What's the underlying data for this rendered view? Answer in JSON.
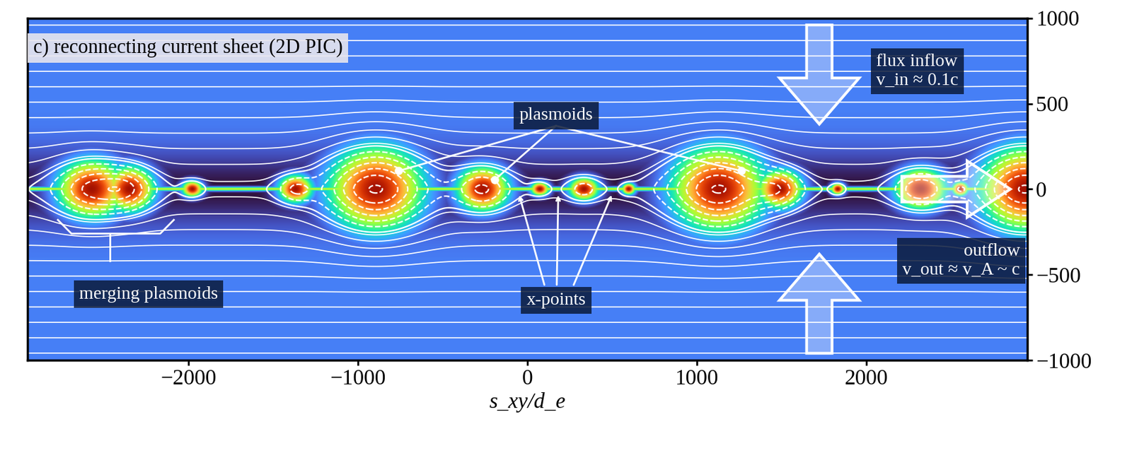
{
  "chart_data": {
    "type": "image",
    "title": "c) reconnecting current sheet (2D PIC)",
    "xlabel": "s_xy/d_e",
    "xlim": [
      -2950,
      2950
    ],
    "ylim": [
      -1000,
      1000
    ],
    "xticks": [
      {
        "value": -2000,
        "label": "−2000"
      },
      {
        "value": -1000,
        "label": "−1000"
      },
      0,
      1000,
      2000
    ],
    "yticks": [
      {
        "value": -1000,
        "label": "−1000"
      },
      {
        "value": -500,
        "label": "−500"
      },
      0,
      500,
      1000
    ],
    "plasmoids": [
      {
        "x": -2574,
        "width": 300,
        "height": 260
      },
      {
        "x": -2349,
        "width": 220,
        "height": 200
      },
      {
        "x": -1979,
        "width": 90,
        "height": 70
      },
      {
        "x": -1370,
        "width": 150,
        "height": 120
      },
      {
        "x": -894,
        "width": 420,
        "height": 380
      },
      {
        "x": -264,
        "width": 230,
        "height": 200
      },
      {
        "x": 72,
        "width": 80,
        "height": 60
      },
      {
        "x": 332,
        "width": 130,
        "height": 100
      },
      {
        "x": 596,
        "width": 60,
        "height": 50
      },
      {
        "x": 1128,
        "width": 420,
        "height": 380
      },
      {
        "x": 1489,
        "width": 200,
        "height": 170
      },
      {
        "x": 1830,
        "width": 60,
        "height": 50
      },
      {
        "x": 2319,
        "width": 220,
        "height": 180
      },
      {
        "x": 2553,
        "width": 70,
        "height": 60
      },
      {
        "x": 2936,
        "width": 400,
        "height": 380
      }
    ],
    "x_points": [
      -50,
      183,
      502
    ],
    "annotations": {
      "plasmoids": "plasmoids",
      "x_points": "x-points",
      "merging": "merging plasmoids",
      "inflow": "flux inflow\nv_in ≈ 0.1c",
      "outflow": "outflow\nv_out ≈ v_A ~ c"
    }
  }
}
